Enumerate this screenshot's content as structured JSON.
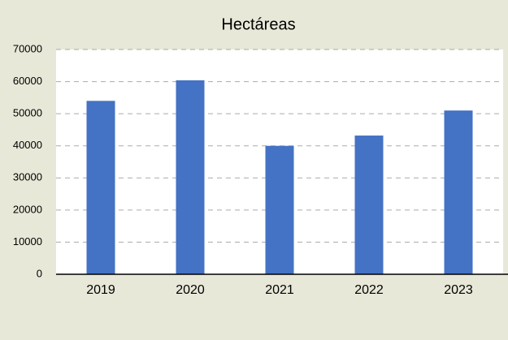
{
  "chart_data": {
    "type": "bar",
    "title": "Hectáreas",
    "categories": [
      "2019",
      "2020",
      "2021",
      "2022",
      "2023"
    ],
    "values": [
      54000,
      60400,
      40000,
      43200,
      51000
    ],
    "color": "#4472c4",
    "ylim": [
      0,
      70000
    ],
    "yticks": [
      0,
      10000,
      20000,
      30000,
      40000,
      50000,
      60000,
      70000
    ],
    "grid": true
  }
}
